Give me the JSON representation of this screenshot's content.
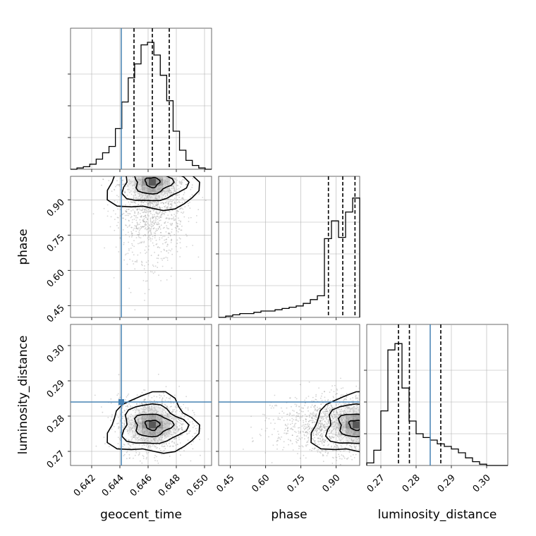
{
  "chart_data": {
    "type": "corner",
    "parameters": [
      "geocent_time",
      "phase",
      "luminosity_distance"
    ],
    "truth": {
      "geocent_time": 0.6441,
      "luminosity_distance": 0.284
    },
    "marginals": [
      {
        "name": "geocent_time",
        "range": [
          0.6405,
          0.6505
        ],
        "xticks": [
          "0.642",
          "0.644",
          "0.646",
          "0.648",
          "0.650"
        ],
        "xtick_values": [
          0.642,
          0.644,
          0.646,
          0.648,
          0.65
        ],
        "quantiles": [
          0.645,
          0.6463,
          0.6475
        ],
        "hist_max": 1.0,
        "hist": [
          0.0,
          0.01,
          0.02,
          0.04,
          0.08,
          0.13,
          0.18,
          0.32,
          0.53,
          0.72,
          0.83,
          0.98,
          1.0,
          0.9,
          0.74,
          0.54,
          0.3,
          0.15,
          0.07,
          0.03,
          0.01,
          0.0
        ]
      },
      {
        "name": "phase",
        "range": [
          0.4,
          1.0
        ],
        "xticks": [
          "0.45",
          "0.60",
          "0.75",
          "0.90"
        ],
        "xtick_values": [
          0.45,
          0.6,
          0.75,
          0.9
        ],
        "yticks": [
          "0.45",
          "0.60",
          "0.75",
          "0.90"
        ],
        "quantiles": [
          0.867,
          0.928,
          0.98
        ],
        "hist_max": 1.0,
        "hist": [
          0.0,
          0.01,
          0.02,
          0.03,
          0.03,
          0.04,
          0.05,
          0.05,
          0.06,
          0.07,
          0.08,
          0.09,
          0.11,
          0.14,
          0.17,
          0.62,
          0.76,
          0.63,
          0.83,
          0.94
        ]
      },
      {
        "name": "luminosity_distance",
        "range": [
          0.266,
          0.306
        ],
        "xticks": [
          "0.27",
          "0.28",
          "0.29",
          "0.30"
        ],
        "xtick_values": [
          0.27,
          0.28,
          0.29,
          0.3
        ],
        "yticks": [
          "0.27",
          "0.28",
          "0.29",
          "0.30"
        ],
        "quantiles": [
          0.275,
          0.2781,
          0.287
        ],
        "hist_max": 1.0,
        "hist": [
          0.02,
          0.12,
          0.43,
          0.91,
          0.96,
          0.61,
          0.35,
          0.25,
          0.22,
          0.2,
          0.17,
          0.15,
          0.13,
          0.1,
          0.06,
          0.03,
          0.01,
          0.0,
          0.0,
          0.0
        ]
      }
    ],
    "joint": [
      {
        "x": "geocent_time",
        "y": "phase",
        "center": [
          0.6463,
          0.975
        ],
        "spread": [
          0.0012,
          0.1
        ],
        "grid": true
      },
      {
        "x": "geocent_time",
        "y": "luminosity_distance",
        "center": [
          0.6463,
          0.2775
        ],
        "spread": [
          0.0012,
          0.004
        ],
        "grid": true
      },
      {
        "x": "phase",
        "y": "luminosity_distance",
        "center": [
          0.985,
          0.2775
        ],
        "spread": [
          0.1,
          0.004
        ],
        "grid": true
      }
    ],
    "colors": {
      "truth": "#4682b4",
      "hist": "#000000",
      "scatter": "#a0a0a0",
      "grid": "#b0b0b0"
    }
  }
}
